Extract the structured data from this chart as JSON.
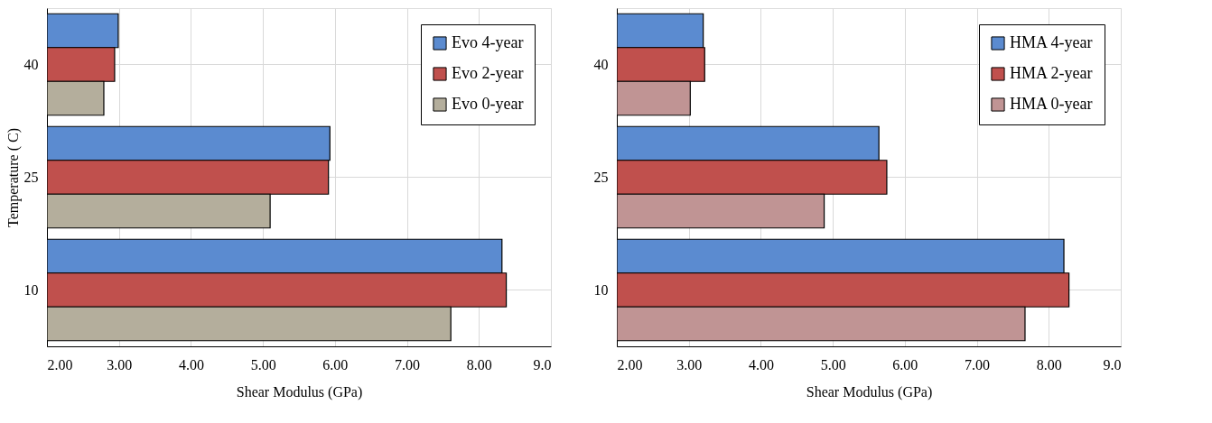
{
  "chart_data": [
    {
      "type": "bar",
      "orientation": "horizontal",
      "xlabel": "Shear Modulus (GPa)",
      "ylabel": "Temperature ( C)",
      "categories": [
        "40",
        "25",
        "10"
      ],
      "series": [
        {
          "name": "Evo 4-year",
          "color": "#5b8bd0",
          "values": [
            2.99,
            5.93,
            8.32
          ]
        },
        {
          "name": "Evo 2-year",
          "color": "#c0504d",
          "values": [
            2.94,
            5.91,
            8.38
          ]
        },
        {
          "name": "Evo 0-year",
          "color": "#b4ae9c",
          "values": [
            2.79,
            5.1,
            7.61
          ]
        }
      ],
      "xlim": [
        2,
        9
      ],
      "xticks": [
        {
          "value": 2,
          "label": "2.00"
        },
        {
          "value": 3,
          "label": "3.00"
        },
        {
          "value": 4,
          "label": "4.00"
        },
        {
          "value": 5,
          "label": "5.00"
        },
        {
          "value": 6,
          "label": "6.00"
        },
        {
          "value": 7,
          "label": "7.00"
        },
        {
          "value": 8,
          "label": "8.00"
        },
        {
          "value": 9,
          "label": "9.0"
        }
      ],
      "grid": true,
      "legend": "top right"
    },
    {
      "type": "bar",
      "orientation": "horizontal",
      "xlabel": "Shear Modulus (GPa)",
      "categories": [
        "40",
        "25",
        "10"
      ],
      "series": [
        {
          "name": "HMA 4-year",
          "color": "#5b8bd0",
          "values": [
            3.2,
            5.64,
            8.21
          ]
        },
        {
          "name": "HMA 2-year",
          "color": "#c0504d",
          "values": [
            3.22,
            5.75,
            8.28
          ]
        },
        {
          "name": "HMA 0-year",
          "color": "#c09494",
          "values": [
            3.02,
            4.88,
            7.67
          ]
        }
      ],
      "xlim": [
        2,
        9
      ],
      "xticks": [
        {
          "value": 2,
          "label": "2.00"
        },
        {
          "value": 3,
          "label": "3.00"
        },
        {
          "value": 4,
          "label": "4.00"
        },
        {
          "value": 5,
          "label": "5.00"
        },
        {
          "value": 6,
          "label": "6.00"
        },
        {
          "value": 7,
          "label": "7.00"
        },
        {
          "value": 8,
          "label": "8.00"
        },
        {
          "value": 9,
          "label": "9.0"
        }
      ],
      "grid": true,
      "legend": "top right"
    }
  ]
}
